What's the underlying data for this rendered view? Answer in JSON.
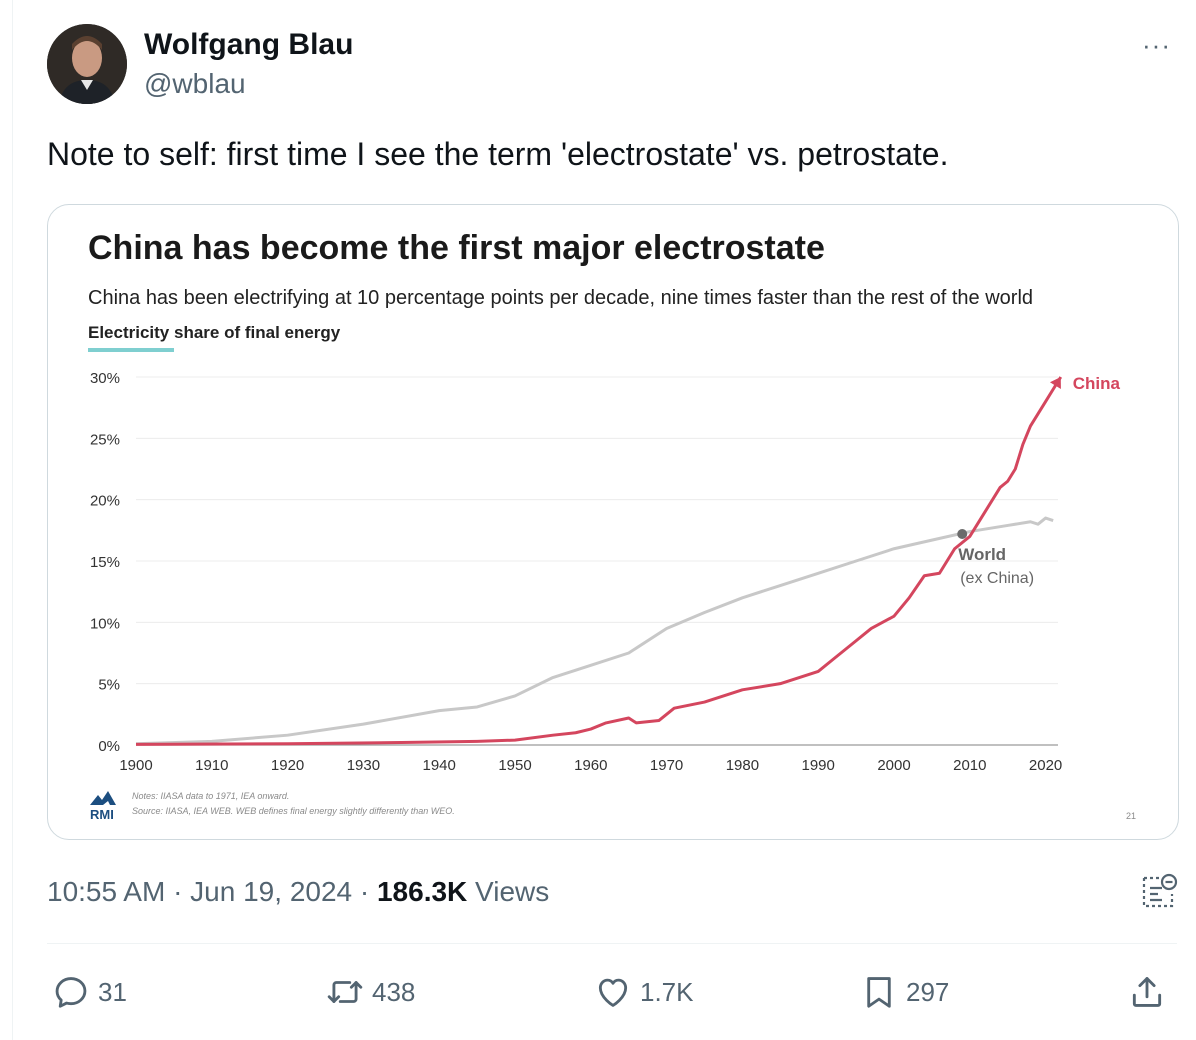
{
  "tweet": {
    "author_name": "Wolfgang Blau",
    "author_handle": "@wblau",
    "more_label": "···",
    "text": "Note to self: first time I see the term 'electrostate' vs. petrostate.",
    "timestamp": "10:55 AM · Jun 19, 2024 · ",
    "views_count": "186.3K",
    "views_label": " Views"
  },
  "actions": {
    "replies": "31",
    "retweets": "438",
    "likes": "1.7K",
    "bookmarks": "297"
  },
  "colors": {
    "china": "#d4465e",
    "world": "#c8c8c8",
    "accent_underline": "#7fcfd0",
    "text_secondary": "#536471"
  },
  "chart_data": {
    "type": "line",
    "title": "China has become the first major electrostate",
    "subtitle": "China has been electrifying at 10 percentage points per decade, nine times faster than the rest of the world",
    "ylabel": "Electricity share of final energy",
    "ylim": [
      0,
      30
    ],
    "xlim": [
      1900,
      2022
    ],
    "yticks": [
      "0%",
      "5%",
      "10%",
      "15%",
      "20%",
      "25%",
      "30%"
    ],
    "xticks": [
      "1900",
      "1910",
      "1920",
      "1930",
      "1940",
      "1950",
      "1960",
      "1970",
      "1980",
      "1990",
      "2000",
      "2010",
      "2020"
    ],
    "grid": true,
    "series": [
      {
        "name": "China",
        "color": "#d4465e",
        "x": [
          1900,
          1920,
          1935,
          1945,
          1950,
          1955,
          1958,
          1960,
          1962,
          1965,
          1966,
          1969,
          1971,
          1975,
          1980,
          1985,
          1990,
          1992,
          1995,
          1997,
          2000,
          2002,
          2004,
          2006,
          2008,
          2010,
          2012,
          2014,
          2015,
          2016,
          2017,
          2018,
          2019,
          2020,
          2021,
          2022
        ],
        "y": [
          0.05,
          0.1,
          0.2,
          0.3,
          0.4,
          0.8,
          1.0,
          1.3,
          1.8,
          2.2,
          1.8,
          2.0,
          3.0,
          3.5,
          4.5,
          5.0,
          6.0,
          7.0,
          8.5,
          9.5,
          10.5,
          12.0,
          13.8,
          14.0,
          16.0,
          17.0,
          19.0,
          21.0,
          21.5,
          22.5,
          24.5,
          26.0,
          27.0,
          28.0,
          29.0,
          30.0
        ]
      },
      {
        "name": "World",
        "subtitle": "(ex China)",
        "color": "#c8c8c8",
        "x": [
          1900,
          1910,
          1920,
          1930,
          1940,
          1945,
          1950,
          1955,
          1960,
          1965,
          1970,
          1975,
          1980,
          1985,
          1990,
          1995,
          2000,
          2005,
          2010,
          2015,
          2018,
          2019,
          2020,
          2021
        ],
        "y": [
          0.1,
          0.3,
          0.8,
          1.7,
          2.8,
          3.1,
          4.0,
          5.5,
          6.5,
          7.5,
          9.5,
          10.8,
          12.0,
          13.0,
          14.0,
          15.0,
          16.0,
          16.7,
          17.4,
          17.9,
          18.2,
          18.0,
          18.5,
          18.3
        ]
      }
    ],
    "annotations": [
      "China",
      "World",
      "(ex China)"
    ],
    "highlight_point": {
      "x": 2009,
      "y": 17.2
    },
    "notes_line1": "Notes: IIASA data to 1971, IEA onward.",
    "notes_line2": "Source: IIASA, IEA WEB. WEB defines final energy slightly differently than WEO.",
    "logo_text": "RMI",
    "page_number": "21"
  }
}
